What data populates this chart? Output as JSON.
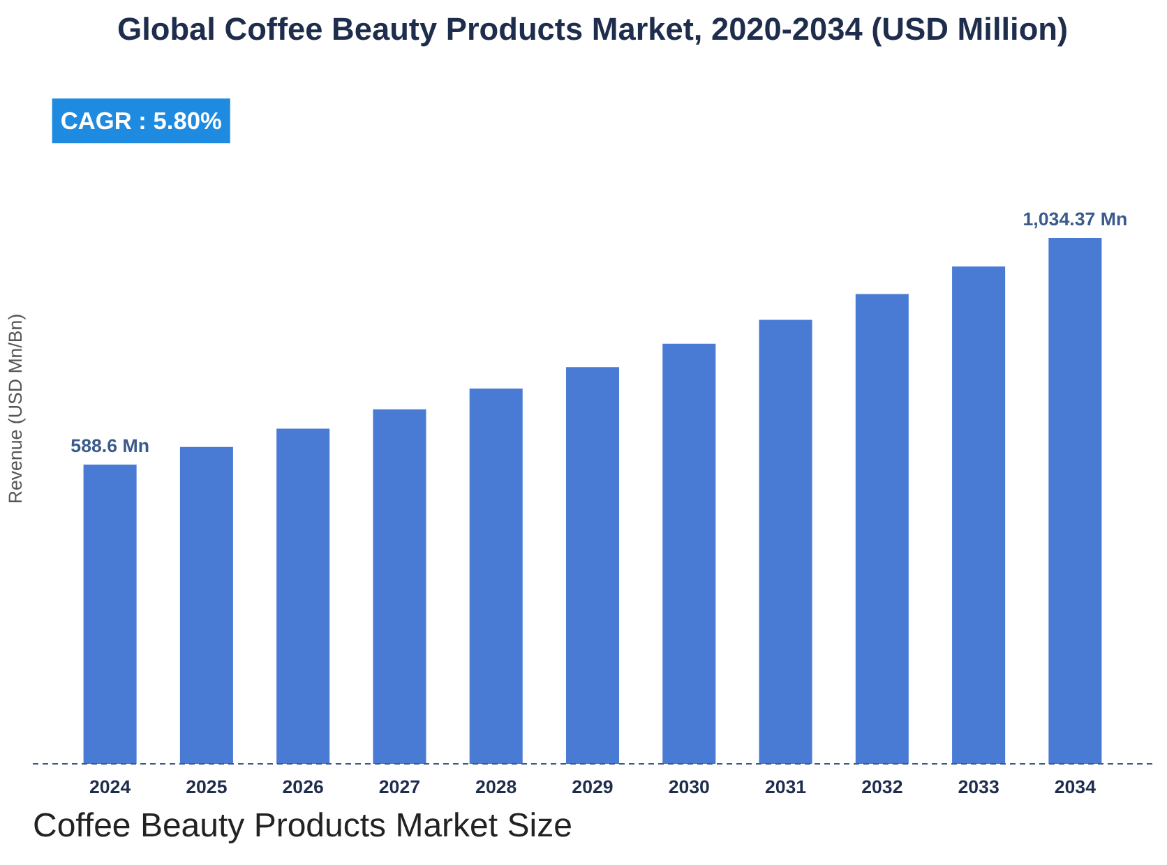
{
  "chart_data": {
    "type": "bar",
    "title": "Global Coffee Beauty Products Market, 2020-2034 (USD Million)",
    "ylabel": "Revenue (USD Mn/Bn)",
    "categories": [
      "2024",
      "2025",
      "2026",
      "2027",
      "2028",
      "2029",
      "2030",
      "2031",
      "2032",
      "2033",
      "2034"
    ],
    "values": [
      588.6,
      623,
      659,
      697,
      738,
      780,
      826,
      873,
      924,
      978,
      1034.37
    ],
    "value_labels": [
      "588.6 Mn",
      null,
      null,
      null,
      null,
      null,
      null,
      null,
      null,
      null,
      "1,034.37 Mn"
    ],
    "color": "#4a7bd4",
    "grid": false,
    "annotations": [
      "CAGR : 5.80%",
      "Coffee Beauty Products Market Size"
    ]
  }
}
